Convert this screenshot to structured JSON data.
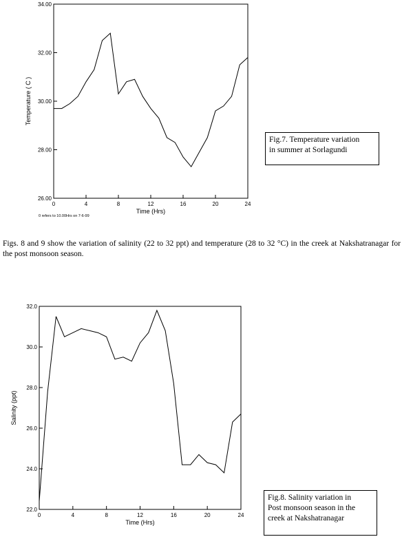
{
  "text": "Figs. 8 and 9 show the variation of salinity (22 to 32 ppt) and temperature (28 to 32 °C) in the creek at Nakshatranagar for the post monsoon season.",
  "chart_data": [
    {
      "type": "line",
      "x_label": "Time (Hrs)",
      "y_label": "Temperature ( C )",
      "note": "0 refers to 10.00Hrs on 7-6-99",
      "caption": [
        "Fig.7. Temperature variation",
        "in summer at Sorlagundi"
      ],
      "x": [
        0,
        1,
        2,
        3,
        4,
        5,
        6,
        7,
        8,
        9,
        10,
        11,
        12,
        13,
        14,
        15,
        16,
        17,
        18,
        19,
        20,
        21,
        22,
        23,
        24
      ],
      "values": [
        29.7,
        29.7,
        29.9,
        30.2,
        30.8,
        31.3,
        32.5,
        32.8,
        30.3,
        30.8,
        30.9,
        30.2,
        29.7,
        29.3,
        28.5,
        28.3,
        27.7,
        27.3,
        27.9,
        28.5,
        29.6,
        29.8,
        30.2,
        31.5,
        31.8
      ],
      "color": "#000000",
      "xlim": [
        0,
        24
      ],
      "xticks": [
        0,
        4,
        8,
        12,
        16,
        20,
        24
      ],
      "ylim": [
        26,
        34
      ],
      "yticks": [
        {
          "value": 26,
          "label": "26.00"
        },
        {
          "value": 28,
          "label": "28.00"
        },
        {
          "value": 30,
          "label": "30.00"
        },
        {
          "value": 32,
          "label": "32.00"
        },
        {
          "value": 34,
          "label": "34.00"
        }
      ]
    },
    {
      "type": "line",
      "x_label": "Time (Hrs)",
      "y_label": "Salinity (ppt)",
      "caption": [
        "Fig.8. Salinity variation in",
        "Post monsoon season in the",
        "creek at Nakshatranagar"
      ],
      "x": [
        0,
        1,
        2,
        3,
        4,
        5,
        6,
        7,
        8,
        9,
        10,
        11,
        12,
        13,
        14,
        15,
        16,
        17,
        18,
        19,
        20,
        21,
        22,
        23,
        24
      ],
      "values": [
        22.4,
        27.8,
        31.5,
        30.5,
        30.7,
        30.9,
        30.8,
        30.7,
        30.5,
        29.4,
        29.5,
        29.3,
        30.2,
        30.7,
        31.8,
        30.8,
        28.2,
        24.2,
        24.2,
        24.7,
        24.3,
        24.2,
        23.8,
        26.3,
        26.7
      ],
      "color": "#000000",
      "xlim": [
        0,
        24
      ],
      "xticks": [
        0,
        4,
        8,
        12,
        16,
        20,
        24
      ],
      "ylim": [
        22,
        32
      ],
      "yticks": [
        {
          "value": 22,
          "label": "22.0"
        },
        {
          "value": 24,
          "label": "24.0"
        },
        {
          "value": 26,
          "label": "26.0"
        },
        {
          "value": 28,
          "label": "28.0"
        },
        {
          "value": 30,
          "label": "30.0"
        },
        {
          "value": 32,
          "label": "32.0"
        }
      ]
    }
  ]
}
